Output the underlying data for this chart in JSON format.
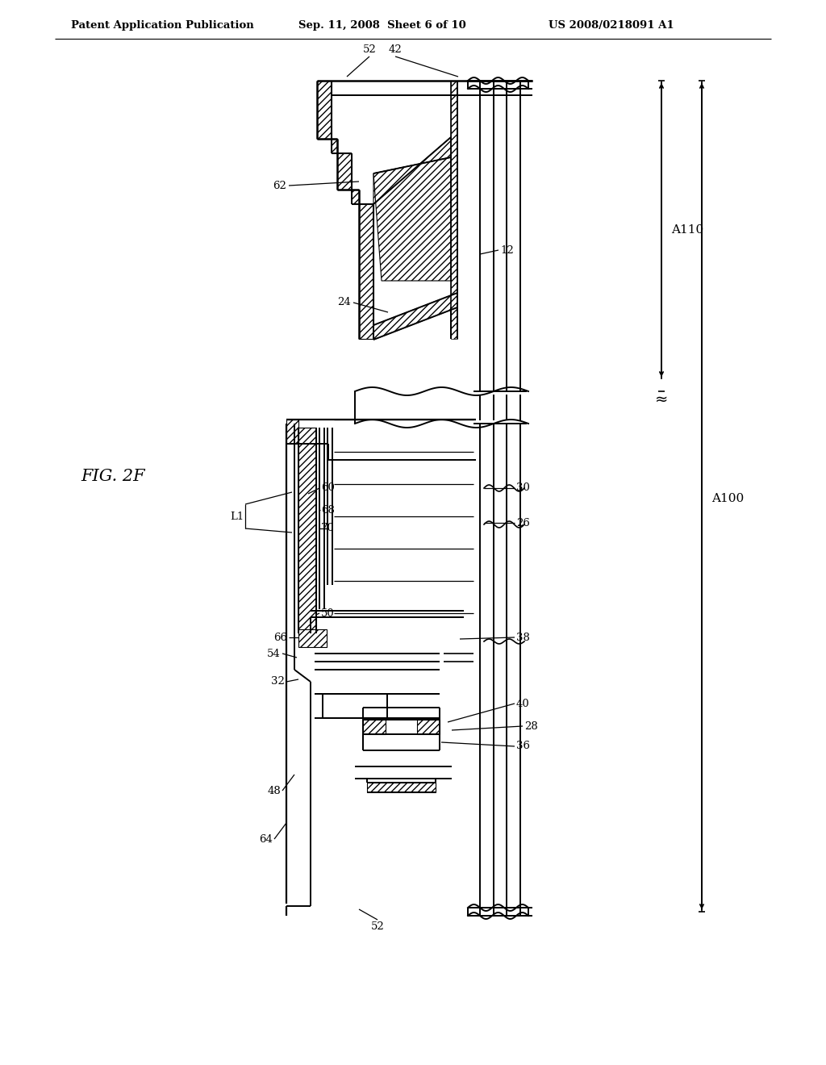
{
  "title_left": "Patent Application Publication",
  "title_center": "Sep. 11, 2008  Sheet 6 of 10",
  "title_right": "US 2008/0218091 A1",
  "fig_label": "FIG. 2F",
  "bg_color": "#ffffff",
  "lc": "#000000"
}
